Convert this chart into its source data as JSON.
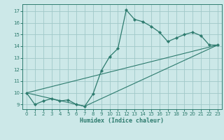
{
  "title": "",
  "xlabel": "Humidex (Indice chaleur)",
  "bg_color": "#cce8e8",
  "line_color": "#2d7b6e",
  "grid_color": "#a0c8c8",
  "xlim": [
    -0.5,
    23.5
  ],
  "ylim": [
    8.6,
    17.6
  ],
  "xticks": [
    0,
    1,
    2,
    3,
    4,
    5,
    6,
    7,
    8,
    9,
    10,
    11,
    12,
    13,
    14,
    15,
    16,
    17,
    18,
    19,
    20,
    21,
    22,
    23
  ],
  "yticks": [
    9,
    10,
    11,
    12,
    13,
    14,
    15,
    16,
    17
  ],
  "series1_x": [
    0,
    1,
    2,
    3,
    4,
    5,
    6,
    7,
    8,
    9,
    10,
    11,
    12,
    13,
    14,
    15,
    16,
    17,
    18,
    19,
    20,
    21,
    22,
    23
  ],
  "series1_y": [
    10.0,
    9.0,
    9.3,
    9.5,
    9.3,
    9.4,
    9.0,
    8.85,
    9.9,
    11.9,
    13.1,
    13.8,
    17.1,
    16.3,
    16.1,
    15.7,
    15.2,
    14.4,
    14.7,
    15.0,
    15.2,
    14.9,
    14.1,
    14.1
  ],
  "series2_x": [
    0,
    23
  ],
  "series2_y": [
    10.0,
    14.1
  ],
  "series3_x": [
    0,
    7,
    23
  ],
  "series3_y": [
    10.0,
    8.85,
    14.1
  ]
}
